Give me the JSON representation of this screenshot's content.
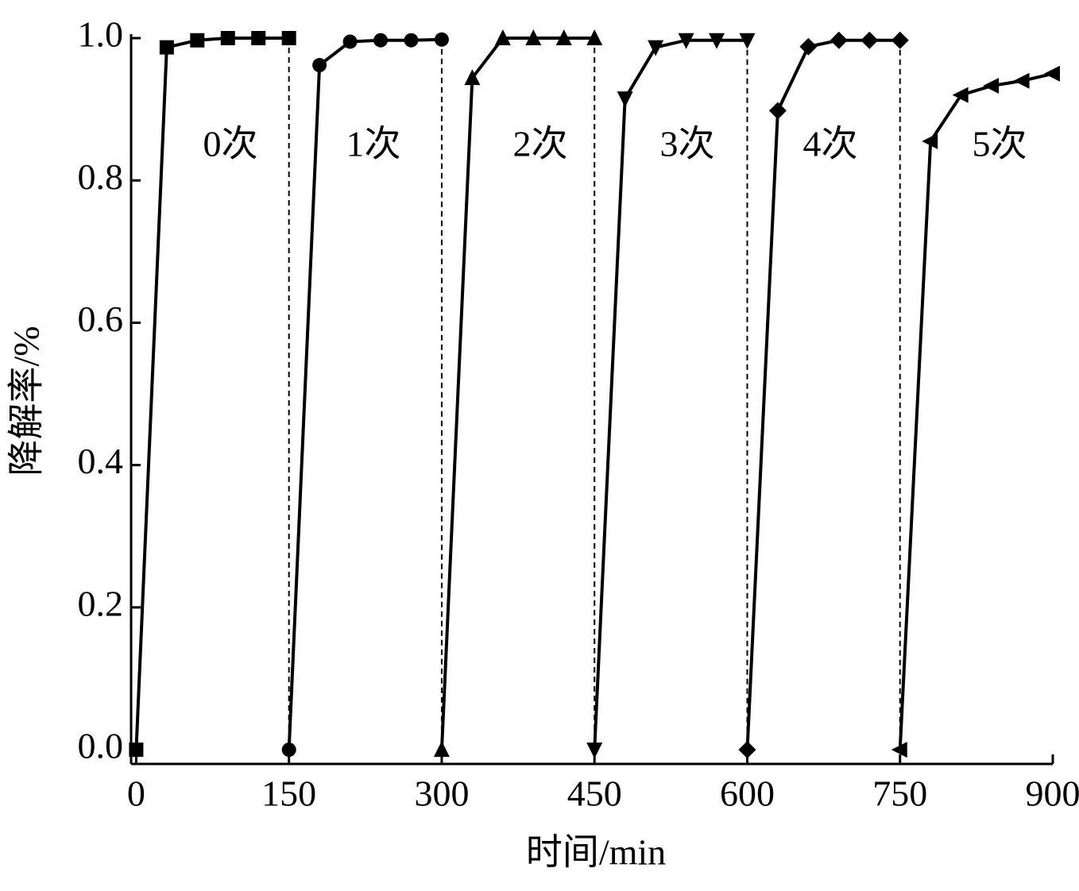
{
  "chart_data": {
    "type": "line",
    "xlabel": "时间/min",
    "ylabel": "降解率/%",
    "xlim": [
      -5,
      900
    ],
    "ylim": [
      -0.02,
      1.0
    ],
    "xticks": [
      0,
      150,
      300,
      450,
      600,
      750,
      900
    ],
    "yticks": [
      {
        "value": 0,
        "label": "0.0"
      },
      {
        "value": 0.2,
        "label": "0.2"
      },
      {
        "value": 0.4,
        "label": "0.4"
      },
      {
        "value": 0.6,
        "label": "0.6"
      },
      {
        "value": 0.8,
        "label": "0.8"
      },
      {
        "value": 1,
        "label": "1.0"
      }
    ],
    "annotations": [
      "0次",
      "1次",
      "2次",
      "3次",
      "4次",
      "5次"
    ],
    "series": [
      {
        "marker": "square",
        "color": "#000000",
        "x": [
          0,
          30,
          60,
          90,
          120,
          150
        ],
        "values": [
          0,
          0.987,
          0.997,
          1.0,
          1.0,
          1.0
        ]
      },
      {
        "marker": "circle",
        "color": "#000000",
        "x": [
          150,
          180,
          210,
          240,
          270,
          300
        ],
        "values": [
          0,
          0.962,
          0.995,
          0.997,
          0.997,
          0.998
        ]
      },
      {
        "marker": "triangle-up",
        "color": "#000000",
        "x": [
          300,
          330,
          360,
          390,
          420,
          450
        ],
        "values": [
          0,
          0.944,
          1.0,
          1.0,
          1.0,
          1.0
        ]
      },
      {
        "marker": "triangle-down",
        "color": "#000000",
        "x": [
          450,
          480,
          510,
          540,
          570,
          600
        ],
        "values": [
          0,
          0.915,
          0.987,
          0.997,
          0.997,
          0.997
        ]
      },
      {
        "marker": "diamond",
        "color": "#000000",
        "x": [
          600,
          630,
          660,
          690,
          720,
          750
        ],
        "values": [
          0,
          0.898,
          0.988,
          0.997,
          0.997,
          0.997
        ]
      },
      {
        "marker": "triangle-left",
        "color": "#000000",
        "x": [
          750,
          780,
          810,
          840,
          870,
          900
        ],
        "values": [
          0,
          0.855,
          0.92,
          0.933,
          0.94,
          0.95
        ]
      }
    ]
  }
}
